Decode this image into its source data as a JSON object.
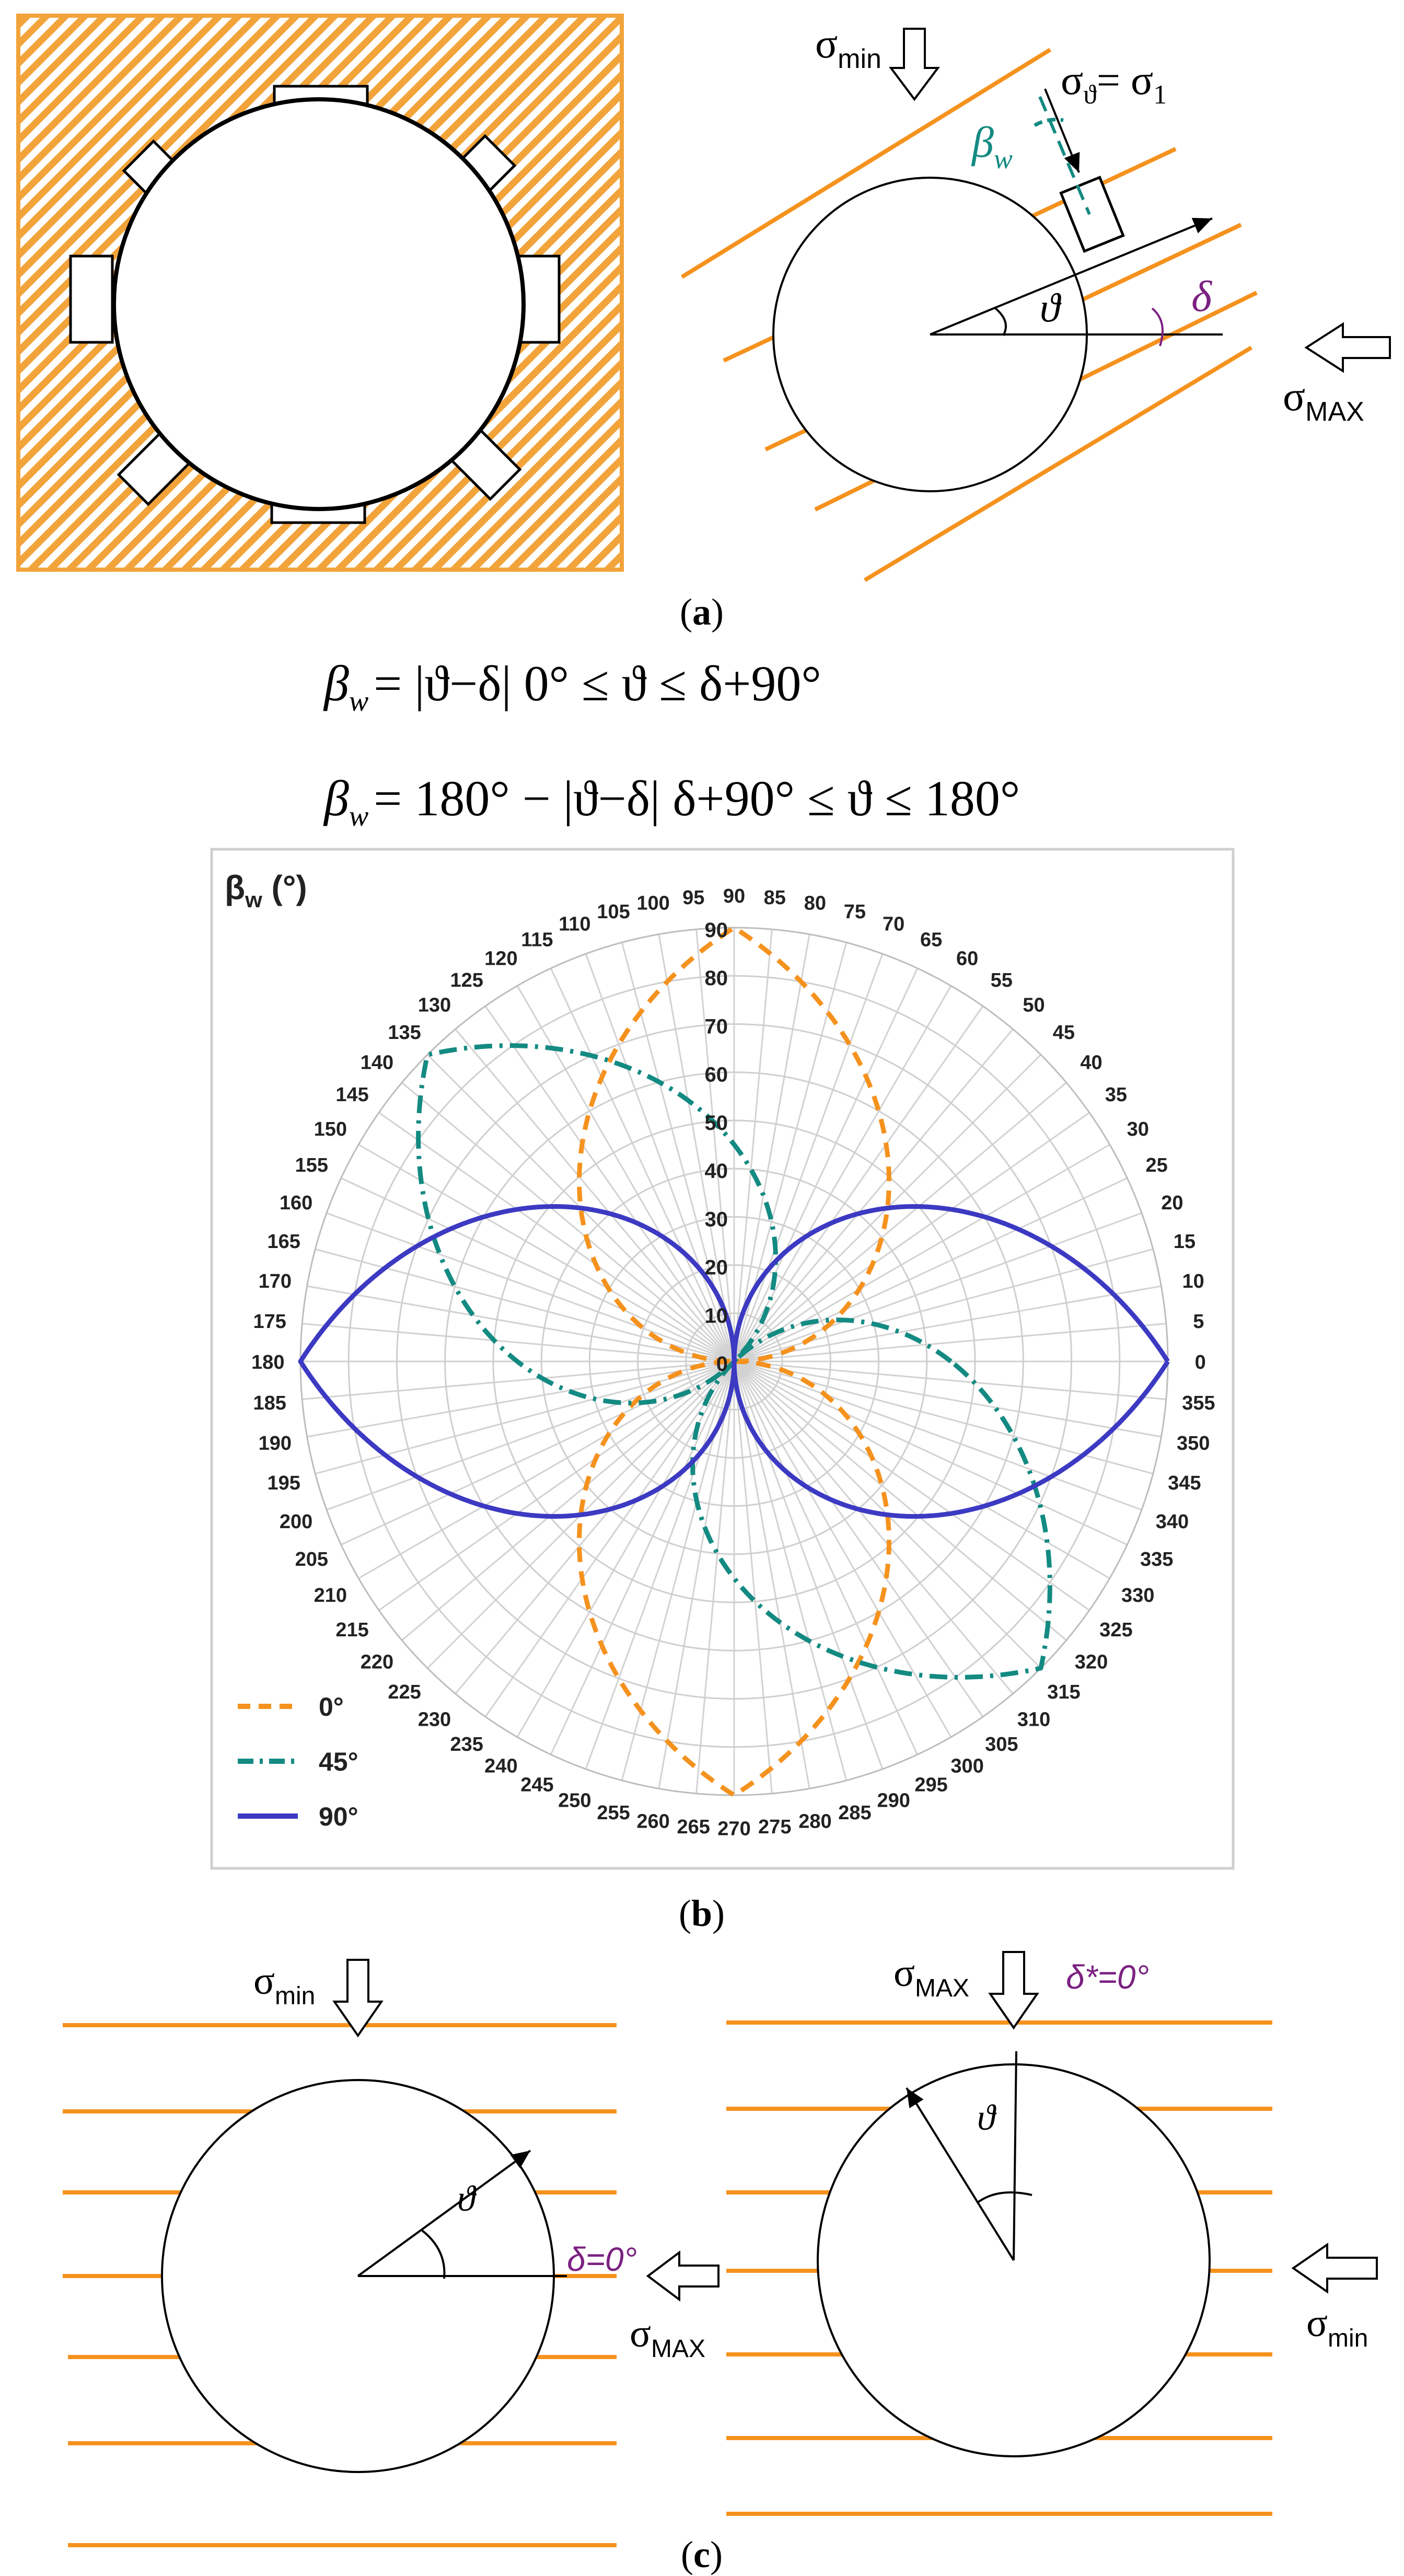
{
  "panel_a": {
    "caption": "a",
    "sigma_min": "σ",
    "sigma_min_sub": "min",
    "sigma_max": "σ",
    "sigma_max_sub": "MAX",
    "sigma_theta_lhs": "σ",
    "sigma_theta_lhs_sub": "ϑ",
    "sigma_theta_eq": "= σ",
    "sigma_theta_rhs_sub": "1",
    "beta_w": "β",
    "beta_w_sub": "w",
    "theta": "ϑ",
    "delta": "δ"
  },
  "equations": {
    "eq1": {
      "beta": "β",
      "beta_sub": "w",
      "rhs": "= |ϑ−δ|  0° ≤ ϑ ≤ δ+90°"
    },
    "eq2": {
      "beta": "β",
      "beta_sub": "w",
      "rhs": "= 180° − |ϑ−δ|  δ+90° ≤ ϑ ≤ 180°"
    }
  },
  "panel_b": {
    "caption": "b",
    "colors": {
      "orange": "#f5921e",
      "teal": "#138a82",
      "blue": "#3c39c2",
      "hatch": "#f2a33a",
      "grid": "#c8c8c8"
    },
    "chart_data": {
      "type": "polar-line",
      "title": "",
      "ylabel": "β",
      "ylabel_sub": "w",
      "ylabel_unit": " (°)",
      "radial_range": [
        0,
        90
      ],
      "radial_ticks": [
        "0",
        "10",
        "20",
        "30",
        "40",
        "50",
        "60",
        "70",
        "80",
        "90"
      ],
      "angular_ticks": [
        "0",
        "5",
        "10",
        "15",
        "20",
        "25",
        "30",
        "35",
        "40",
        "45",
        "50",
        "55",
        "60",
        "65",
        "70",
        "75",
        "80",
        "85",
        "90",
        "95",
        "100",
        "105",
        "110",
        "115",
        "120",
        "125",
        "130",
        "135",
        "140",
        "145",
        "150",
        "155",
        "160",
        "165",
        "170",
        "175",
        "180",
        "185",
        "190",
        "195",
        "200",
        "205",
        "210",
        "215",
        "220",
        "225",
        "230",
        "235",
        "240",
        "245",
        "250",
        "255",
        "260",
        "265",
        "270",
        "275",
        "280",
        "285",
        "290",
        "295",
        "300",
        "305",
        "310",
        "315",
        "320",
        "325",
        "330",
        "335",
        "340",
        "345",
        "350",
        "355"
      ],
      "legend_position": "bottom-left",
      "series": [
        {
          "name": "0°",
          "delta": 0,
          "style": "dashed",
          "color": "#f5921e"
        },
        {
          "name": "45°",
          "delta": 45,
          "style": "dash-dot",
          "color": "#138a82"
        },
        {
          "name": "90°",
          "delta": 90,
          "style": "solid",
          "color": "#3c39c2"
        }
      ]
    }
  },
  "panel_c": {
    "caption": "c",
    "left": {
      "sigma_min": "σ",
      "sigma_min_sub": "min",
      "sigma_max": "σ",
      "sigma_max_sub": "MAX",
      "theta": "ϑ",
      "delta_label": "δ=0°"
    },
    "right": {
      "sigma_max": "σ",
      "sigma_max_sub": "MAX",
      "sigma_min": "σ",
      "sigma_min_sub": "min",
      "theta": "ϑ",
      "delta_label": "δ*=0°"
    }
  }
}
